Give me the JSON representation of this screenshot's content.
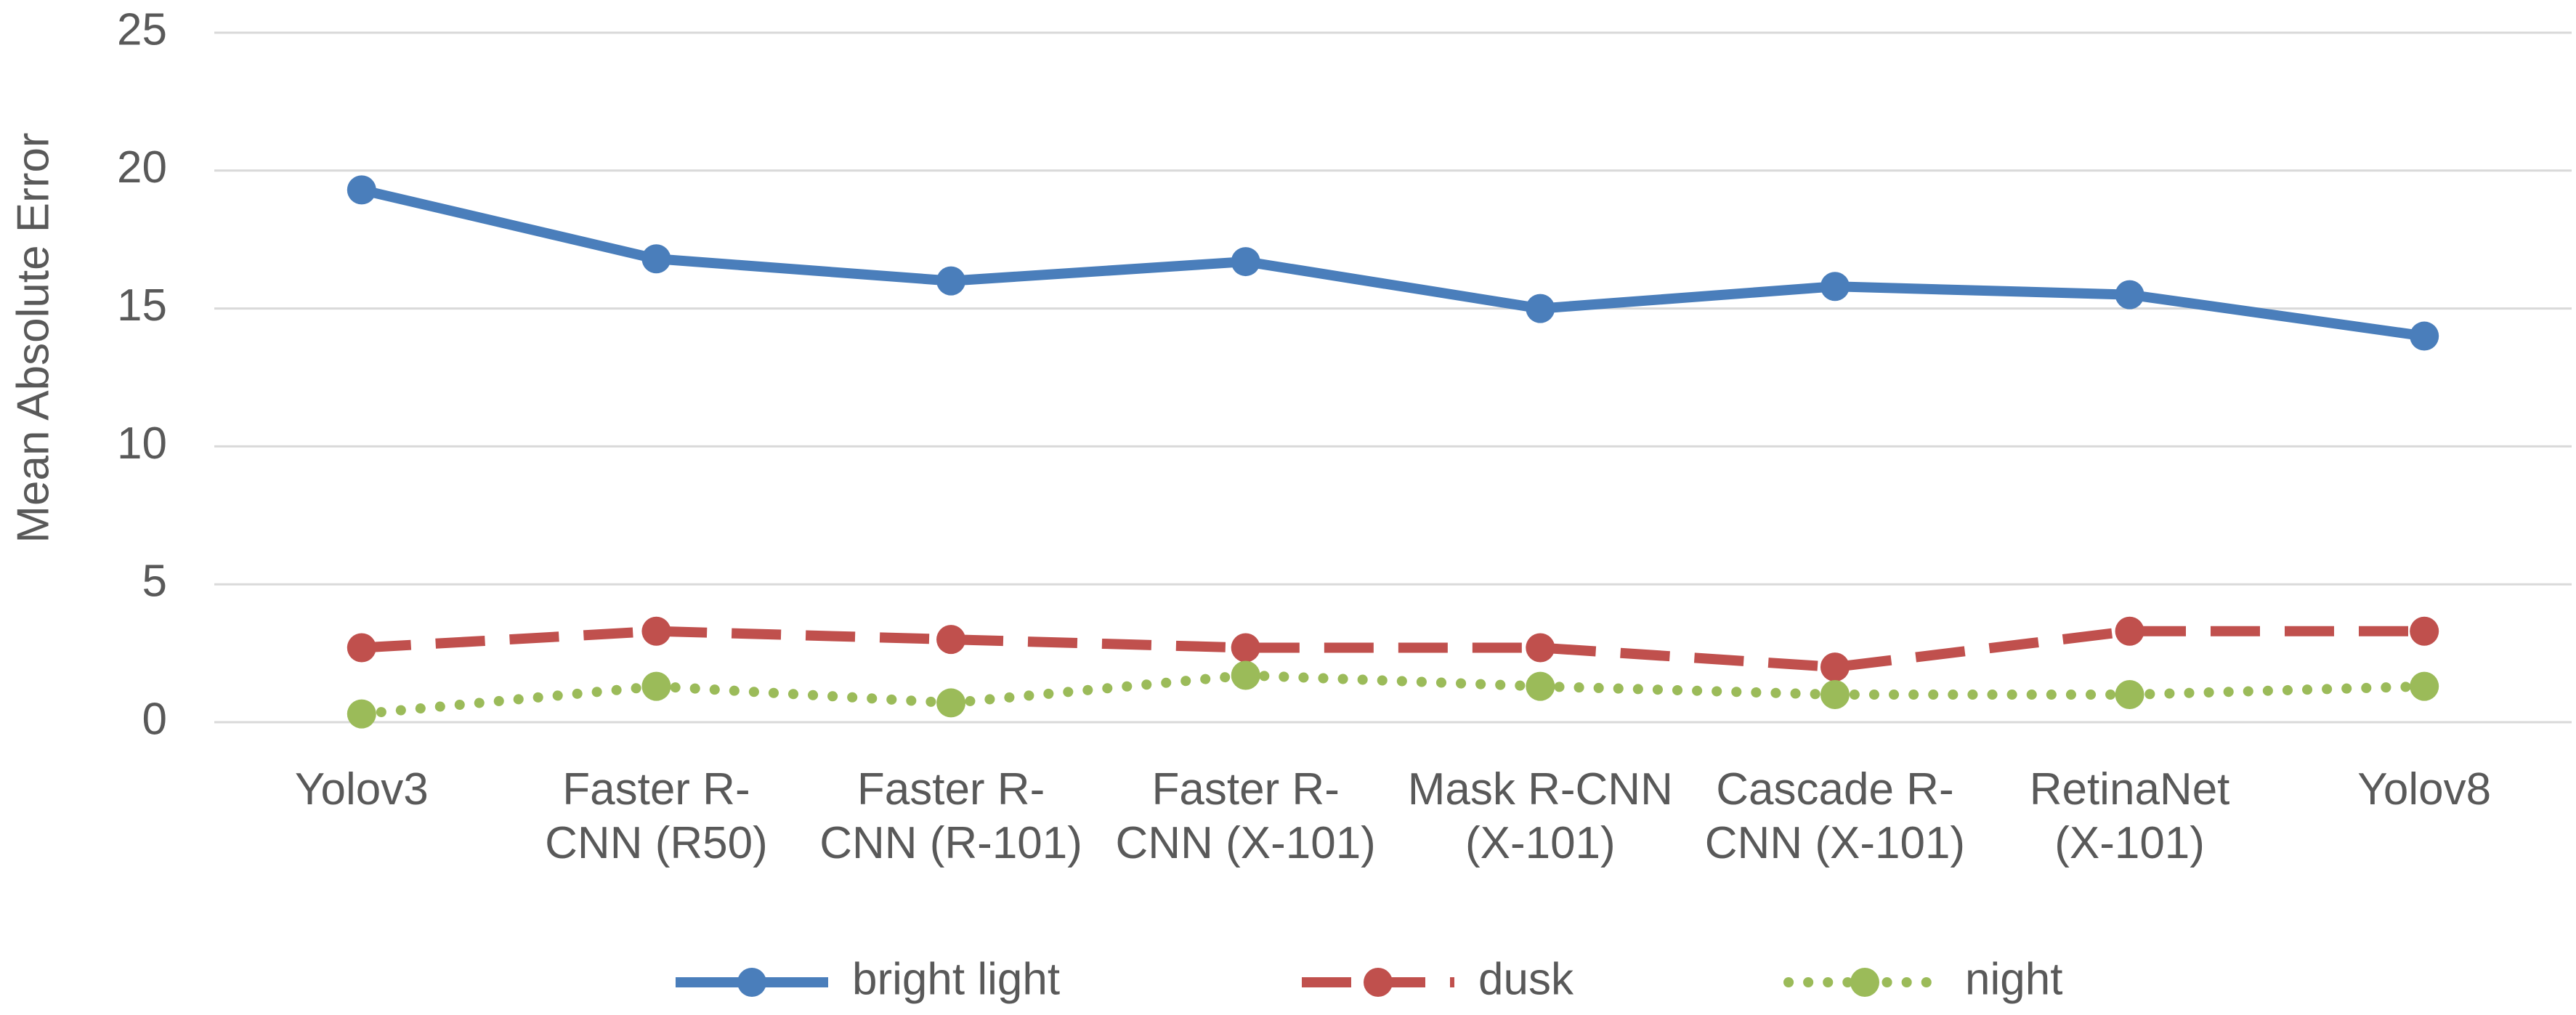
{
  "chart_data": {
    "type": "line",
    "y_label": "Mean Absolute Error",
    "categories": [
      "Yolov3",
      "Faster R-\nCNN (R50)",
      "Faster R-\nCNN (R-101)",
      "Faster R-\nCNN (X-101)",
      "Mask R-CNN\n(X-101)",
      "Cascade R-\nCNN (X-101)",
      "RetinaNet\n(X-101)",
      "Yolov8"
    ],
    "series": [
      {
        "name": "bright light",
        "color": "#4a7ebb",
        "dash": "solid",
        "values": [
          19.3,
          16.8,
          16.0,
          16.7,
          15.0,
          15.8,
          15.5,
          14.0
        ]
      },
      {
        "name": "dusk",
        "color": "#c0504d",
        "dash": "dashed",
        "values": [
          2.7,
          3.3,
          3.0,
          2.7,
          2.7,
          2.0,
          3.3,
          3.3
        ]
      },
      {
        "name": "night",
        "color": "#9bbb59",
        "dash": "dotted",
        "values": [
          0.3,
          1.3,
          0.7,
          1.7,
          1.3,
          1.0,
          1.0,
          1.3
        ]
      }
    ],
    "ylim": [
      0,
      25
    ],
    "yticks": [
      0,
      5,
      10,
      15,
      20,
      25
    ],
    "grid": true,
    "legend": "bottom"
  }
}
